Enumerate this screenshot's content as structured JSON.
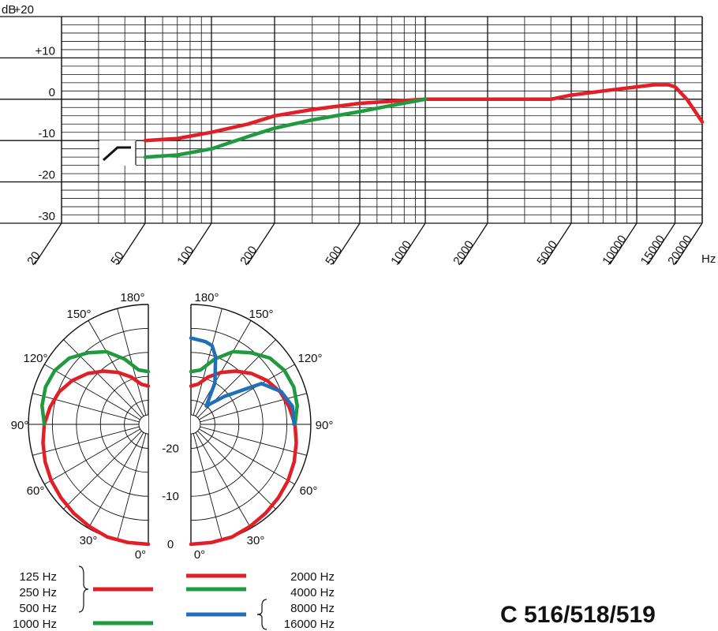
{
  "colors": {
    "red": "#e21e26",
    "green": "#1f9a3e",
    "blue": "#1f6fba",
    "grid": "#111111"
  },
  "model_label": "C 516/518/519",
  "chart_data": [
    {
      "type": "line",
      "xscale": "log",
      "xlim": [
        20,
        20000
      ],
      "ylim": [
        -30,
        20
      ],
      "y_unit": "dB",
      "x_unit": "Hz",
      "y_tick_labels": [
        "+20",
        "+10",
        "0",
        "-10",
        "-20",
        "-30"
      ],
      "y_tick_values": [
        20,
        10,
        0,
        -10,
        -20,
        -30
      ],
      "x_tick_labels": [
        "20",
        "50",
        "100",
        "200",
        "500",
        "1000",
        "2000",
        "5000",
        "10000",
        "15000",
        "20000"
      ],
      "x_tick_values": [
        20,
        50,
        100,
        200,
        500,
        1000,
        2000,
        5000,
        10000,
        15000,
        20000
      ],
      "grid": true,
      "filter_icon": "bass-cut-filter-icon",
      "series": [
        {
          "color": "red",
          "x": [
            50,
            70,
            100,
            150,
            200,
            300,
            500,
            700,
            1000,
            1500,
            2000,
            3000,
            4000,
            5000,
            7000,
            10000,
            12000,
            13000,
            14000,
            15000,
            17000,
            20000
          ],
          "y": [
            -10,
            -9.5,
            -8,
            -6,
            -4,
            -2.5,
            -1,
            -0.5,
            0,
            0,
            0,
            0,
            0,
            1,
            2,
            3,
            3.5,
            3.5,
            3.5,
            3,
            0,
            -5.5
          ]
        },
        {
          "color": "green",
          "x": [
            50,
            70,
            100,
            150,
            200,
            300,
            500,
            700,
            1000
          ],
          "y": [
            -14,
            -13.5,
            -12,
            -9,
            -7,
            -5,
            -3,
            -1.5,
            0
          ]
        }
      ]
    },
    {
      "type": "polar",
      "angle_labels_left": [
        "180°",
        "150°",
        "120°",
        "90°",
        "60°",
        "30°",
        "0°"
      ],
      "angle_labels_right": [
        "180°",
        "150°",
        "120°",
        "90°",
        "60°",
        "30°",
        "0°"
      ],
      "angle_values": [
        180,
        150,
        120,
        90,
        60,
        30,
        0
      ],
      "radial_labels": [
        "-20",
        "-10",
        "0"
      ],
      "radial_values": [
        -20,
        -10,
        0
      ],
      "rlim": [
        -25,
        0
      ],
      "series": [
        {
          "side": "left",
          "color": "red",
          "angle": [
            0,
            10,
            20,
            30,
            40,
            50,
            60,
            70,
            80,
            90,
            100,
            110,
            120,
            130,
            140,
            150,
            160,
            170,
            180
          ],
          "db": [
            0,
            0,
            0,
            -0.4,
            -0.8,
            -1.2,
            -1.6,
            -2.1,
            -2.7,
            -3.3,
            -4.2,
            -5.2,
            -6.7,
            -8.5,
            -10.5,
            -12.5,
            -14.5,
            -16.5,
            -17
          ]
        },
        {
          "side": "left",
          "color": "green",
          "angle": [
            90,
            100,
            110,
            120,
            130,
            140,
            150,
            160,
            170,
            180
          ],
          "db": [
            -3.3,
            -2.5,
            -2.2,
            -2.5,
            -3.5,
            -5.5,
            -7.5,
            -10.5,
            -13.5,
            -14
          ]
        },
        {
          "side": "right",
          "color": "red",
          "angle": [
            0,
            10,
            20,
            30,
            40,
            50,
            60,
            70,
            80,
            90,
            100,
            110,
            120,
            130,
            140,
            150,
            160,
            170,
            180
          ],
          "db": [
            0,
            0,
            0,
            -0.4,
            -0.8,
            -1.2,
            -1.6,
            -2.1,
            -2.7,
            -3.3,
            -4.2,
            -5.2,
            -6.7,
            -8.5,
            -10.5,
            -12.5,
            -14.5,
            -16.5,
            -17
          ]
        },
        {
          "side": "right",
          "color": "green",
          "angle": [
            90,
            100,
            110,
            120,
            130,
            140,
            150,
            160,
            170,
            180
          ],
          "db": [
            -3.3,
            -2.5,
            -2.2,
            -2.5,
            -3.5,
            -5.5,
            -7.5,
            -10.5,
            -13.5,
            -14
          ]
        },
        {
          "side": "right",
          "color": "blue",
          "angle": [
            90,
            100,
            110,
            120,
            130,
            140,
            150,
            160,
            165,
            170,
            180
          ],
          "db": [
            -3.5,
            -3.5,
            -5,
            -8,
            -16,
            -20,
            -15,
            -10,
            -8,
            -7.5,
            -7
          ]
        }
      ]
    }
  ],
  "legend": {
    "left_labels": [
      "125 Hz",
      "250 Hz",
      "500 Hz",
      "1000 Hz"
    ],
    "right_labels": [
      "2000 Hz",
      "4000 Hz",
      "8000 Hz",
      "16000 Hz"
    ]
  }
}
